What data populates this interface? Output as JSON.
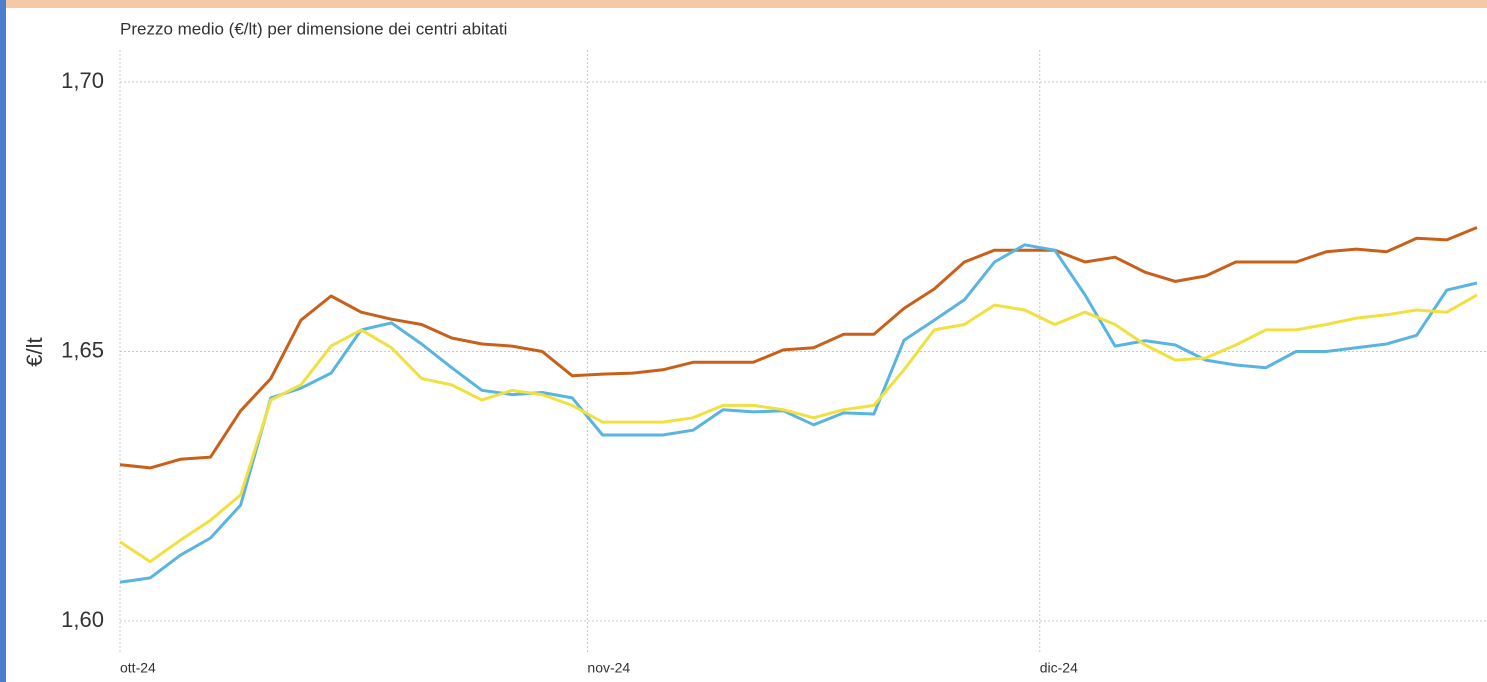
{
  "chart_data": {
    "type": "line",
    "title": "Prezzo medio (€/lt) per dimensione dei centri abitati",
    "ylabel": "€/lt",
    "x": [
      0,
      2,
      4,
      6,
      8,
      10,
      12,
      14,
      16,
      18,
      20,
      22,
      24,
      26,
      28,
      30,
      32,
      34,
      36,
      38,
      40,
      42,
      44,
      46,
      48,
      50,
      52,
      54,
      56,
      58,
      60,
      62,
      64,
      66,
      68,
      70,
      72,
      74,
      76,
      78,
      80,
      82,
      84,
      86,
      88,
      90
    ],
    "xlim": [
      0,
      90
    ],
    "xticks": [
      {
        "value": 0,
        "label": "ott-24"
      },
      {
        "value": 31,
        "label": "nov-24"
      },
      {
        "value": 61,
        "label": "dic-24"
      }
    ],
    "ylim": [
      1.6,
      1.7
    ],
    "yticks": [
      {
        "value": 1.6,
        "label": "1,60"
      },
      {
        "value": 1.65,
        "label": "1,65"
      },
      {
        "value": 1.7,
        "label": "1,70"
      }
    ],
    "grid": true,
    "series": [
      {
        "color": "#c8601a",
        "values": [
          1.629,
          1.6284,
          1.63,
          1.6304,
          1.639,
          1.645,
          1.6558,
          1.6603,
          1.6573,
          1.656,
          1.655,
          1.6525,
          1.6514,
          1.651,
          1.65,
          1.6455,
          1.6458,
          1.646,
          1.6466,
          1.648,
          1.648,
          1.648,
          1.6503,
          1.6507,
          1.6532,
          1.6532,
          1.658,
          1.6616,
          1.6666,
          1.6688,
          1.6688,
          1.6688,
          1.6666,
          1.6675,
          1.6647,
          1.663,
          1.664,
          1.6666,
          1.6666,
          1.6666,
          1.6685,
          1.669,
          1.6685,
          1.671,
          1.6707,
          1.673
        ]
      },
      {
        "color": "#5ab4e0",
        "values": [
          1.6072,
          1.608,
          1.6122,
          1.6154,
          1.6215,
          1.6414,
          1.6432,
          1.646,
          1.654,
          1.6553,
          1.6514,
          1.647,
          1.6428,
          1.642,
          1.6424,
          1.6414,
          1.6345,
          1.6345,
          1.6345,
          1.6354,
          1.6392,
          1.6388,
          1.639,
          1.6364,
          1.6386,
          1.6384,
          1.6521,
          1.6558,
          1.6596,
          1.6666,
          1.6698,
          1.6688,
          1.6605,
          1.651,
          1.652,
          1.6512,
          1.6484,
          1.6475,
          1.647,
          1.65,
          1.65,
          1.6507,
          1.6514,
          1.653,
          1.6614,
          1.6627
        ]
      },
      {
        "color": "#f0e040",
        "values": [
          1.6147,
          1.611,
          1.615,
          1.6187,
          1.6234,
          1.641,
          1.6438,
          1.651,
          1.654,
          1.6507,
          1.645,
          1.6438,
          1.641,
          1.6428,
          1.642,
          1.64,
          1.6369,
          1.6369,
          1.6369,
          1.6377,
          1.64,
          1.64,
          1.6392,
          1.6377,
          1.6392,
          1.64,
          1.6466,
          1.654,
          1.655,
          1.6586,
          1.6577,
          1.655,
          1.6573,
          1.655,
          1.6512,
          1.6484,
          1.6488,
          1.6512,
          1.654,
          1.654,
          1.655,
          1.6562,
          1.6568,
          1.6577,
          1.6573,
          1.6605
        ]
      }
    ]
  }
}
